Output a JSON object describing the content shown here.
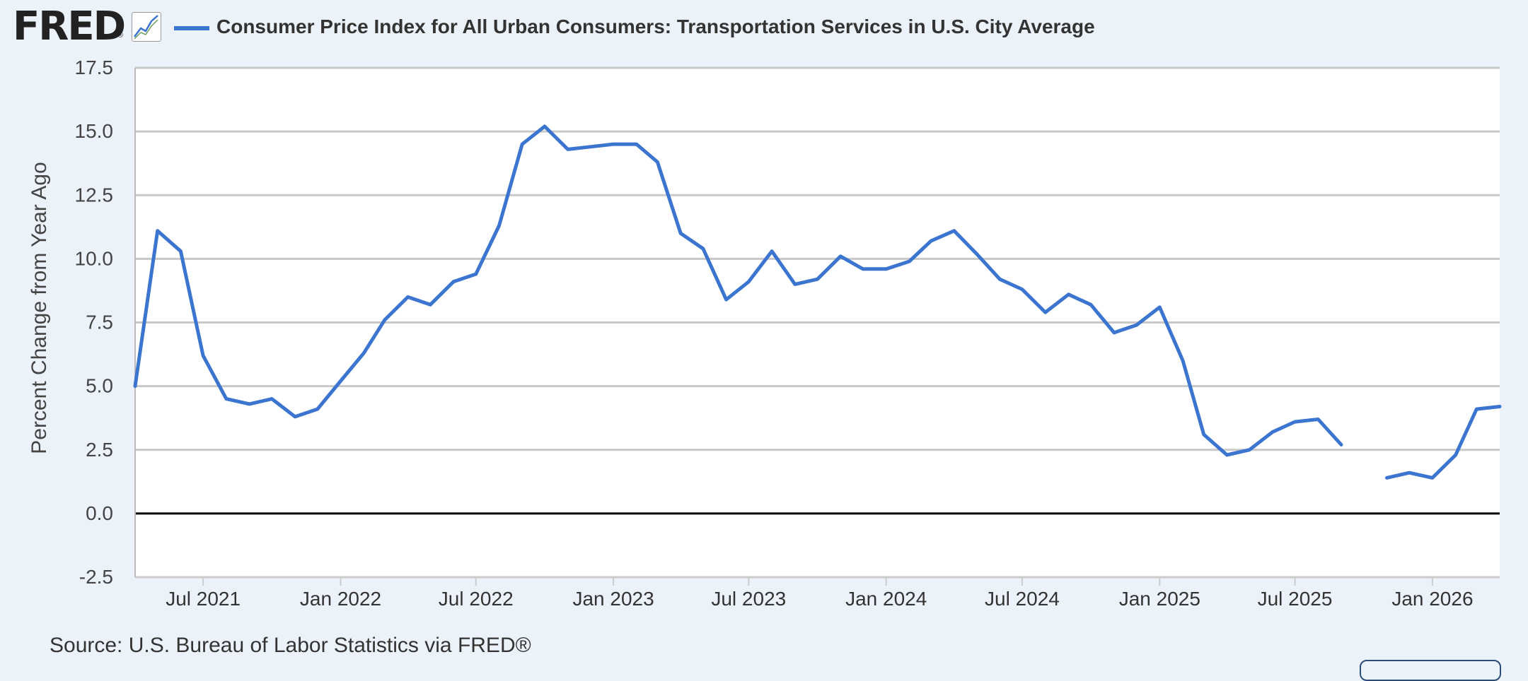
{
  "header": {
    "logo_text": "FRED",
    "logo_mark": "®",
    "graph_icon": "line-graph-icon"
  },
  "colors": {
    "background": "#ecf2fa",
    "plot_background": "#ffffff",
    "series": "#3b75cf",
    "grid": "#c8c8c8",
    "zero_line": "#000000"
  },
  "source": "Source: U.S. Bureau of Labor Statistics via FRED®",
  "chart_data": {
    "type": "line",
    "title": "Consumer Price Index for All Urban Consumers: Transportation Services in U.S. City Average",
    "xlabel": "",
    "ylabel": "Percent Change from Year Ago",
    "ylim": [
      -2.5,
      17.5
    ],
    "xlim": [
      "2021-04-01",
      "2026-03-01"
    ],
    "y_ticks": [
      "17.5",
      "15.0",
      "12.5",
      "10.0",
      "7.5",
      "5.0",
      "2.5",
      "0.0",
      "-2.5"
    ],
    "x_ticks": [
      {
        "label": "Jul 2021",
        "date": "2021-07-01"
      },
      {
        "label": "Jan 2022",
        "date": "2022-01-01"
      },
      {
        "label": "Jul 2022",
        "date": "2022-07-01"
      },
      {
        "label": "Jan 2023",
        "date": "2023-01-01"
      },
      {
        "label": "Jul 2023",
        "date": "2023-07-01"
      },
      {
        "label": "Jan 2024",
        "date": "2024-01-01"
      },
      {
        "label": "Jul 2024",
        "date": "2024-07-01"
      },
      {
        "label": "Jan 2025",
        "date": "2025-01-01"
      },
      {
        "label": "Jul 2025",
        "date": "2025-07-01"
      },
      {
        "label": "Jan 2026",
        "date": "2026-01-01"
      }
    ],
    "grid": true,
    "legend": "top-left",
    "series": [
      {
        "name": "Consumer Price Index for All Urban Consumers: Transportation Services in U.S. City Average",
        "points": [
          [
            "2021-04-01",
            5.0
          ],
          [
            "2021-05-01",
            11.1
          ],
          [
            "2021-06-01",
            10.3
          ],
          [
            "2021-07-01",
            6.2
          ],
          [
            "2021-08-01",
            4.5
          ],
          [
            "2021-09-01",
            4.3
          ],
          [
            "2021-10-01",
            4.5
          ],
          [
            "2021-11-01",
            3.8
          ],
          [
            "2021-12-01",
            4.1
          ],
          [
            "2022-01-01",
            5.2
          ],
          [
            "2022-02-01",
            6.3
          ],
          [
            "2022-03-01",
            7.6
          ],
          [
            "2022-04-01",
            8.5
          ],
          [
            "2022-05-01",
            8.2
          ],
          [
            "2022-06-01",
            9.1
          ],
          [
            "2022-07-01",
            9.4
          ],
          [
            "2022-08-01",
            11.3
          ],
          [
            "2022-09-01",
            14.5
          ],
          [
            "2022-10-01",
            15.2
          ],
          [
            "2022-11-01",
            14.3
          ],
          [
            "2022-12-01",
            14.4
          ],
          [
            "2023-01-01",
            14.5
          ],
          [
            "2023-02-01",
            14.5
          ],
          [
            "2023-03-01",
            13.8
          ],
          [
            "2023-04-01",
            11.0
          ],
          [
            "2023-05-01",
            10.4
          ],
          [
            "2023-06-01",
            8.4
          ],
          [
            "2023-07-01",
            9.1
          ],
          [
            "2023-08-01",
            10.3
          ],
          [
            "2023-09-01",
            9.0
          ],
          [
            "2023-10-01",
            9.2
          ],
          [
            "2023-11-01",
            10.1
          ],
          [
            "2023-12-01",
            9.6
          ],
          [
            "2024-01-01",
            9.6
          ],
          [
            "2024-02-01",
            9.9
          ],
          [
            "2024-03-01",
            10.7
          ],
          [
            "2024-04-01",
            11.1
          ],
          [
            "2024-05-01",
            10.2
          ],
          [
            "2024-06-01",
            9.2
          ],
          [
            "2024-07-01",
            8.8
          ],
          [
            "2024-08-01",
            7.9
          ],
          [
            "2024-09-01",
            8.6
          ],
          [
            "2024-10-01",
            8.2
          ],
          [
            "2024-11-01",
            7.1
          ],
          [
            "2024-12-01",
            7.4
          ],
          [
            "2025-01-01",
            8.1
          ],
          [
            "2025-02-01",
            6.0
          ],
          [
            "2025-03-01",
            3.1
          ],
          [
            "2025-04-01",
            2.3
          ],
          [
            "2025-05-01",
            2.5
          ],
          [
            "2025-06-01",
            3.2
          ],
          [
            "2025-07-01",
            3.6
          ],
          [
            "2025-08-01",
            3.7
          ],
          [
            "2025-09-01",
            2.7
          ],
          [
            "2025-10-01",
            null
          ],
          [
            "2025-11-01",
            1.4
          ],
          [
            "2025-12-01",
            1.6
          ],
          [
            "2026-01-01",
            1.4
          ],
          [
            "2026-02-01",
            2.3
          ],
          [
            "2026-03-01",
            4.1
          ],
          [
            "2026-04-01",
            4.2
          ]
        ]
      }
    ]
  }
}
